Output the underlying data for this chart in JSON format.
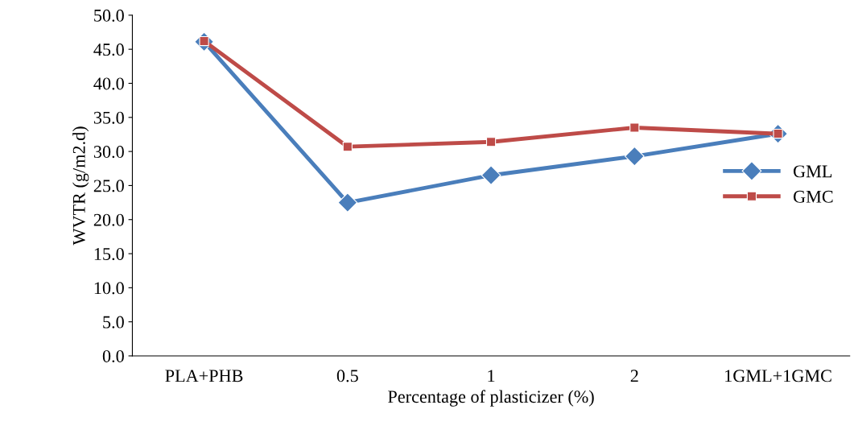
{
  "chart_data": {
    "type": "line",
    "xlabel": "Percentage of plasticizer (%)",
    "ylabel": "WVTR (g/m2.d)",
    "categories": [
      "PLA+PHB",
      "0.5",
      "1",
      "2",
      "1GML+1GMC"
    ],
    "series": [
      {
        "name": "GML",
        "color": "#4a7ebb",
        "marker": "diamond",
        "values": [
          46.1,
          22.5,
          26.5,
          29.3,
          32.6
        ]
      },
      {
        "name": "GMC",
        "color": "#be4b48",
        "marker": "square",
        "values": [
          46.2,
          30.7,
          31.4,
          33.5,
          32.6
        ]
      }
    ],
    "ylim": [
      0,
      50
    ],
    "yticks": [
      {
        "value": 0,
        "label": "0.0"
      },
      {
        "value": 5,
        "label": "5.0"
      },
      {
        "value": 10,
        "label": "10.0"
      },
      {
        "value": 15,
        "label": "15.0"
      },
      {
        "value": 20,
        "label": "20.0"
      },
      {
        "value": 25,
        "label": "25.0"
      },
      {
        "value": 30,
        "label": "30.0"
      },
      {
        "value": 35,
        "label": "35.0"
      },
      {
        "value": 40,
        "label": "40.0"
      },
      {
        "value": 45,
        "label": "45.0"
      },
      {
        "value": 50,
        "label": "50.0"
      }
    ],
    "grid": false,
    "legend": "right",
    "line_style": "solid"
  }
}
